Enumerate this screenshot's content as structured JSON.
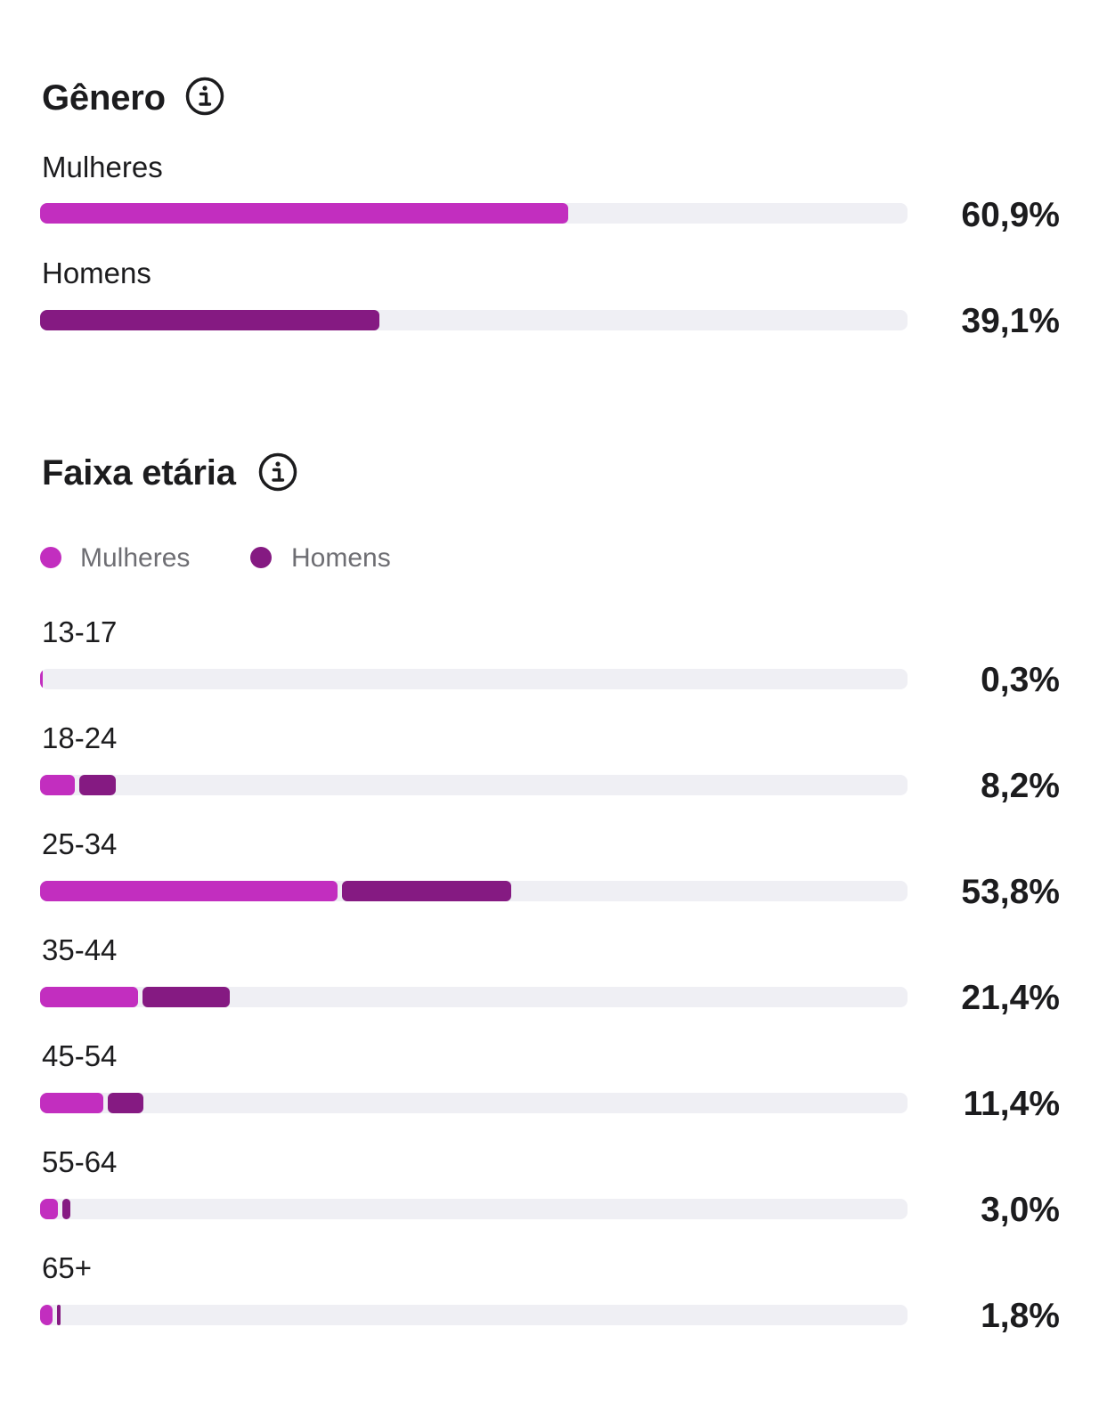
{
  "colors": {
    "women": "#c22ebf",
    "men": "#851a82",
    "track": "#efeff4"
  },
  "gender": {
    "title": "Gênero",
    "info_icon": "info-circle-icon",
    "rows": [
      {
        "label": "Mulheres",
        "value_text": "60,9%",
        "women_share": 0.609,
        "men_share": 0
      },
      {
        "label": "Homens",
        "value_text": "39,1%",
        "women_share": 0,
        "men_share": 0.391
      }
    ]
  },
  "age": {
    "title": "Faixa etária",
    "info_icon": "info-circle-icon",
    "legend": {
      "women": "Mulheres",
      "men": "Homens"
    },
    "rows": [
      {
        "label": "13-17",
        "value_text": "0,3%",
        "women_share": 0.003,
        "men_share": 0.0
      },
      {
        "label": "18-24",
        "value_text": "8,2%",
        "women_share": 0.04,
        "men_share": 0.042
      },
      {
        "label": "25-34",
        "value_text": "53,8%",
        "women_share": 0.343,
        "men_share": 0.195
      },
      {
        "label": "35-44",
        "value_text": "21,4%",
        "women_share": 0.113,
        "men_share": 0.101
      },
      {
        "label": "45-54",
        "value_text": "11,4%",
        "women_share": 0.073,
        "men_share": 0.041
      },
      {
        "label": "55-64",
        "value_text": "3,0%",
        "women_share": 0.021,
        "men_share": 0.009
      },
      {
        "label": "65+",
        "value_text": "1,8%",
        "women_share": 0.014,
        "men_share": 0.004
      }
    ]
  }
}
